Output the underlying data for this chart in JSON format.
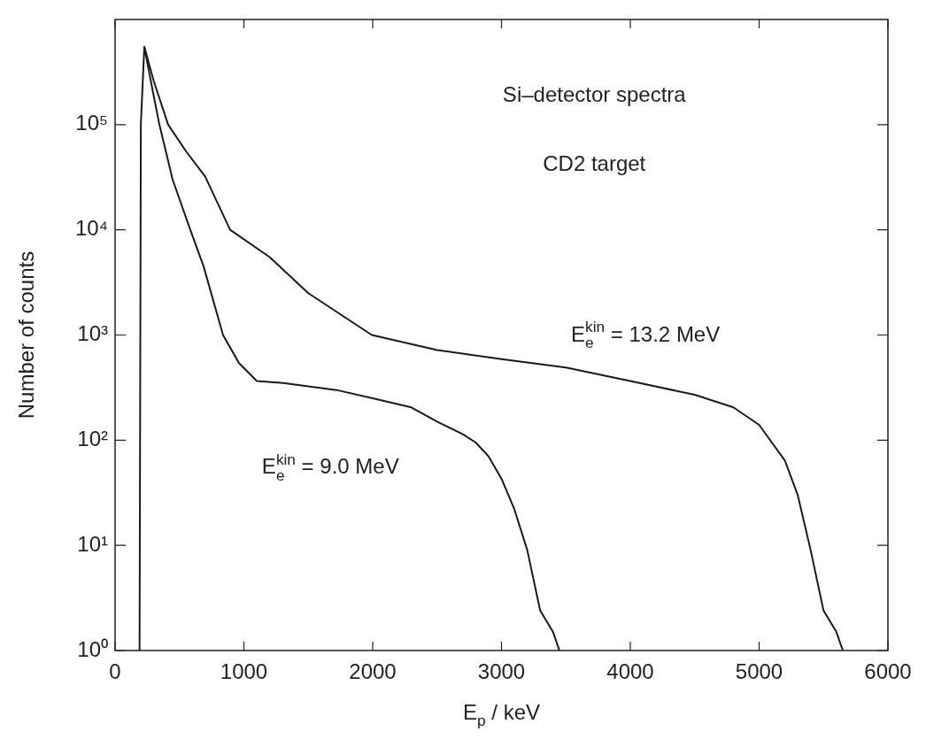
{
  "chart_data": {
    "type": "line",
    "xlabel": "E$_{p}$ / keV",
    "ylabel": "Number of counts",
    "log": "y",
    "grid": false,
    "legend": false,
    "marker": "none",
    "line_style": "solid",
    "xlim": [
      0,
      6000
    ],
    "xticks": [
      0,
      1000,
      2000,
      3000,
      4000,
      5000,
      6000
    ],
    "ylim": [
      1,
      1000000
    ],
    "yticks": [
      {
        "value": 1,
        "label": "10⁰"
      },
      {
        "value": 10,
        "label": "10¹"
      },
      {
        "value": 100,
        "label": "10²"
      },
      {
        "value": 1000,
        "label": "10³"
      },
      {
        "value": 10000,
        "label": "10⁴"
      },
      {
        "value": 100000,
        "label": "10⁵"
      }
    ],
    "annotations": [
      "Si–detector spectra",
      "CD2 target"
    ],
    "series": [
      {
        "name": "E$_{e}$$^{kin}$ = 9.0 MeV",
        "color": "#1a1a1a",
        "x": [
          190,
          200,
          227,
          280,
          344,
          447,
          584,
          687,
          838,
          962,
          1100,
          1306,
          1718,
          2000,
          2300,
          2500,
          2700,
          2800,
          2900,
          3000,
          3100,
          3200,
          3300,
          3400,
          3450
        ],
        "values": [
          1,
          100000,
          550000,
          250000,
          100000,
          30000,
          10000,
          4500,
          1000,
          540,
          365,
          350,
          300,
          250,
          205,
          150,
          114,
          95,
          70,
          43,
          22,
          9,
          2.4,
          1.5,
          1
        ]
      },
      {
        "name": "E$_{e}$$^{kin}$ = 13.2 MeV",
        "color": "#1a1a1a",
        "x": [
          227,
          300,
          412,
          550,
          700,
          893,
          1200,
          1500,
          1993,
          2500,
          3000,
          3500,
          4000,
          4500,
          4800,
          5000,
          5200,
          5300,
          5400,
          5500,
          5600,
          5650
        ],
        "values": [
          550000,
          260000,
          100000,
          56000,
          32000,
          10000,
          5500,
          2500,
          1000,
          720,
          590,
          490,
          365,
          270,
          205,
          140,
          64,
          30,
          9,
          2.4,
          1.5,
          1
        ]
      }
    ]
  }
}
